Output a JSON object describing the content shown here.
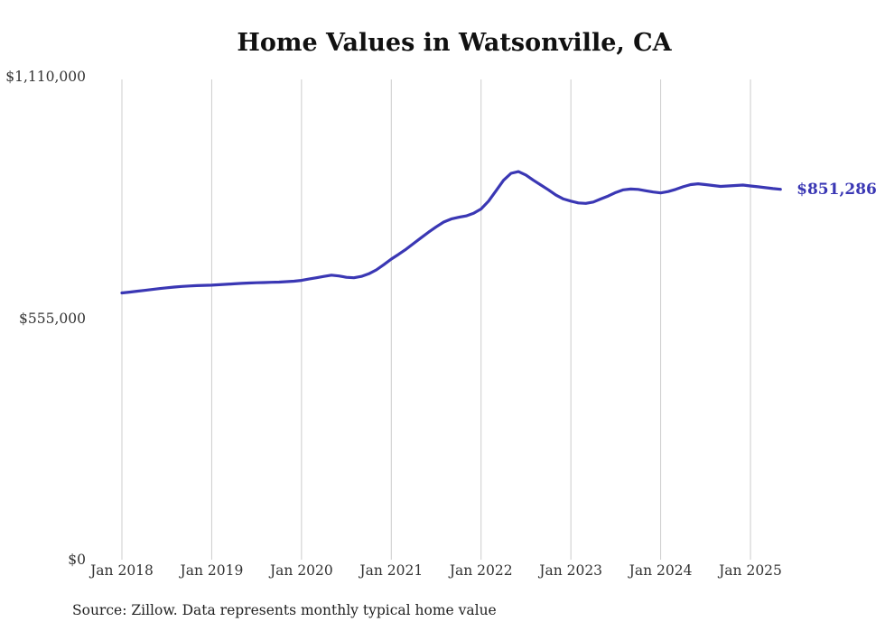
{
  "title": "Home Values in Watsonville, CA",
  "source_note": "Source: Zillow. Data represents monthly typical home value",
  "line_color": "#3a37b4",
  "grid_color": "#cccccc",
  "chart_data": {
    "type": "line",
    "title": "Home Values in Watsonville, CA",
    "xlabel": "",
    "ylabel": "",
    "ylim": [
      0,
      1110000
    ],
    "grid": "vertical-yearly",
    "legend": false,
    "x_tick_labels": [
      "Jan 2018",
      "Jan 2019",
      "Jan 2020",
      "Jan 2021",
      "Jan 2022",
      "Jan 2023",
      "Jan 2024",
      "Jan 2025"
    ],
    "y_ticks": [
      {
        "label": "$0",
        "value": 0
      },
      {
        "label": "$555,000",
        "value": 555000
      },
      {
        "label": "$1,110,000",
        "value": 1110000
      }
    ],
    "annotation": {
      "text": "$851,286",
      "value": 851286,
      "position": "line-end"
    },
    "frequency": "monthly",
    "series": [
      {
        "name": "Typical home value",
        "color": "#3a37b4",
        "x": [
          "2018-01",
          "2018-02",
          "2018-03",
          "2018-04",
          "2018-05",
          "2018-06",
          "2018-07",
          "2018-08",
          "2018-09",
          "2018-10",
          "2018-11",
          "2018-12",
          "2019-01",
          "2019-02",
          "2019-03",
          "2019-04",
          "2019-05",
          "2019-06",
          "2019-07",
          "2019-08",
          "2019-09",
          "2019-10",
          "2019-11",
          "2019-12",
          "2020-01",
          "2020-02",
          "2020-03",
          "2020-04",
          "2020-05",
          "2020-06",
          "2020-07",
          "2020-08",
          "2020-09",
          "2020-10",
          "2020-11",
          "2020-12",
          "2021-01",
          "2021-02",
          "2021-03",
          "2021-04",
          "2021-05",
          "2021-06",
          "2021-07",
          "2021-08",
          "2021-09",
          "2021-10",
          "2021-11",
          "2021-12",
          "2022-01",
          "2022-02",
          "2022-03",
          "2022-04",
          "2022-05",
          "2022-06",
          "2022-07",
          "2022-08",
          "2022-09",
          "2022-10",
          "2022-11",
          "2022-12",
          "2023-01",
          "2023-02",
          "2023-03",
          "2023-04",
          "2023-05",
          "2023-06",
          "2023-07",
          "2023-08",
          "2023-09",
          "2023-10",
          "2023-11",
          "2023-12",
          "2024-01",
          "2024-02",
          "2024-03",
          "2024-04",
          "2024-05",
          "2024-06",
          "2024-07",
          "2024-08",
          "2024-09",
          "2024-10",
          "2024-11",
          "2024-12",
          "2025-01",
          "2025-02",
          "2025-03",
          "2025-04",
          "2025-05"
        ],
        "values": [
          613000,
          615000,
          617000,
          619000,
          621000,
          623000,
          625000,
          626500,
          628000,
          629000,
          630000,
          630500,
          631000,
          632000,
          633000,
          634000,
          635000,
          636000,
          636500,
          637000,
          637500,
          638000,
          639000,
          640000,
          642000,
          645000,
          648000,
          651000,
          654000,
          652000,
          649000,
          648000,
          651000,
          657000,
          666000,
          678000,
          691000,
          702000,
          714000,
          727000,
          740000,
          753000,
          765000,
          776000,
          783000,
          787000,
          790000,
          796000,
          806000,
          824000,
          848000,
          872000,
          888000,
          892000,
          884000,
          872000,
          861000,
          850000,
          838000,
          829000,
          824000,
          820000,
          819000,
          822000,
          829000,
          836000,
          844000,
          850000,
          852000,
          851000,
          848000,
          845000,
          843000,
          846000,
          851000,
          857000,
          862000,
          864000,
          862000,
          860000,
          858000,
          859000,
          860000,
          861000,
          859000,
          857000,
          855000,
          853000,
          851286
        ]
      }
    ]
  }
}
